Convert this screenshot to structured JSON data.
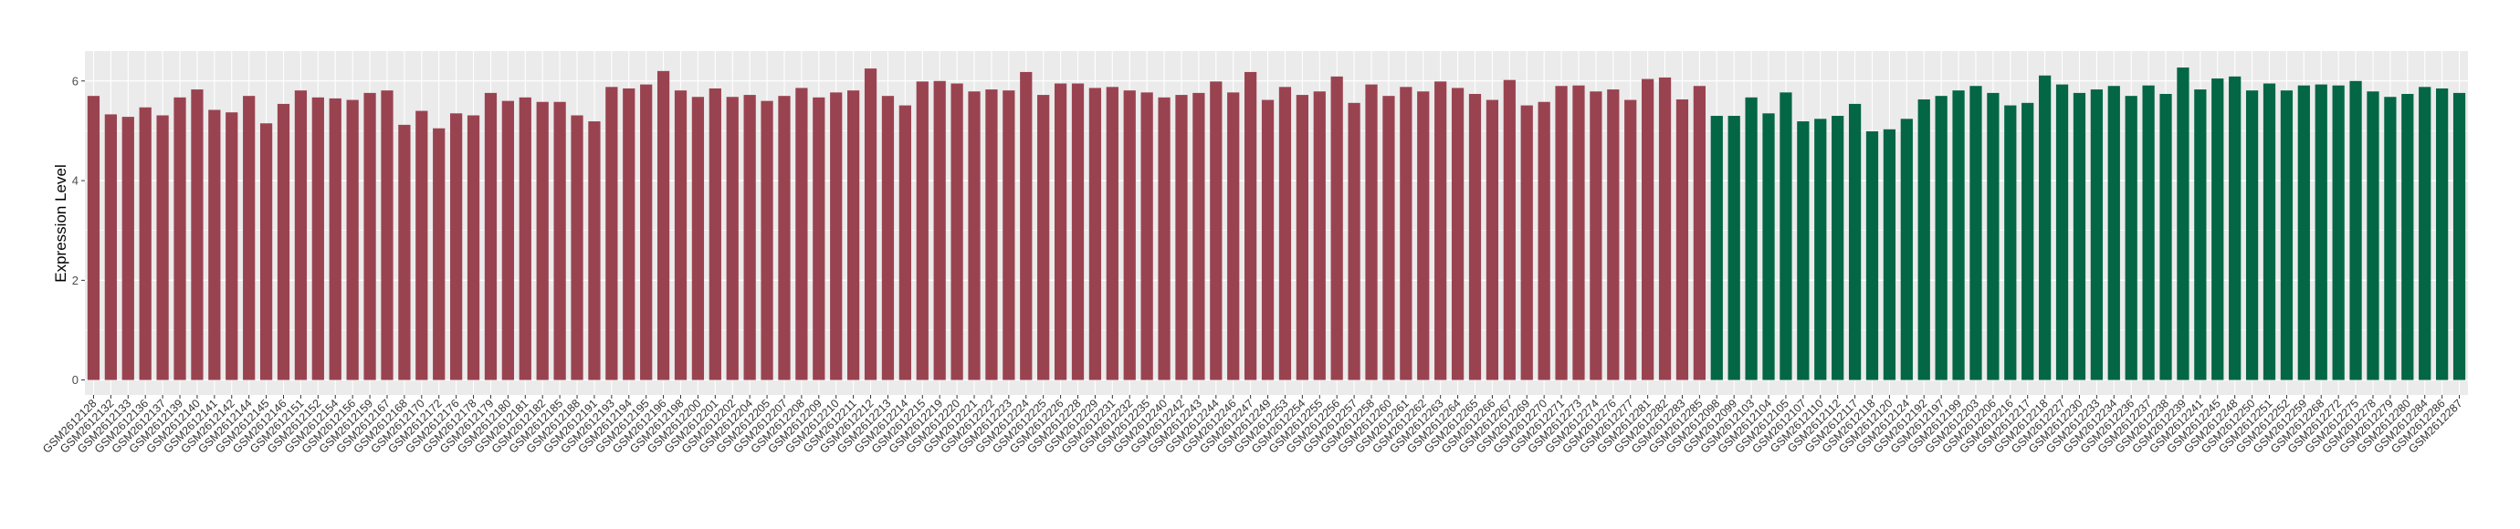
{
  "chart_data": {
    "type": "bar",
    "title": "",
    "xlabel": "",
    "ylabel": "Expression Level",
    "ylim": [
      -0.3,
      6.6
    ],
    "yticks": [
      0,
      2,
      4,
      6
    ],
    "grid": true,
    "legend": "none",
    "colors": {
      "group1": "#9A4350",
      "group2": "#036645",
      "panel": "#EBEBEB",
      "grid": "#FFFFFF"
    },
    "categories": [
      "GSM2612128",
      "GSM2612132",
      "GSM2612133",
      "GSM2612136",
      "GSM2612137",
      "GSM2612139",
      "GSM2612140",
      "GSM2612141",
      "GSM2612142",
      "GSM2612144",
      "GSM2612145",
      "GSM2612146",
      "GSM2612151",
      "GSM2612152",
      "GSM2612154",
      "GSM2612156",
      "GSM2612159",
      "GSM2612167",
      "GSM2612168",
      "GSM2612170",
      "GSM2612172",
      "GSM2612176",
      "GSM2612178",
      "GSM2612179",
      "GSM2612180",
      "GSM2612181",
      "GSM2612182",
      "GSM2612185",
      "GSM2612188",
      "GSM2612191",
      "GSM2612193",
      "GSM2612194",
      "GSM2612195",
      "GSM2612196",
      "GSM2612198",
      "GSM2612200",
      "GSM2612201",
      "GSM2612202",
      "GSM2612204",
      "GSM2612205",
      "GSM2612207",
      "GSM2612208",
      "GSM2612209",
      "GSM2612210",
      "GSM2612211",
      "GSM2612212",
      "GSM2612213",
      "GSM2612214",
      "GSM2612215",
      "GSM2612219",
      "GSM2612220",
      "GSM2612221",
      "GSM2612222",
      "GSM2612223",
      "GSM2612224",
      "GSM2612225",
      "GSM2612226",
      "GSM2612228",
      "GSM2612229",
      "GSM2612231",
      "GSM2612232",
      "GSM2612235",
      "GSM2612240",
      "GSM2612242",
      "GSM2612243",
      "GSM2612244",
      "GSM2612246",
      "GSM2612247",
      "GSM2612249",
      "GSM2612253",
      "GSM2612254",
      "GSM2612255",
      "GSM2612256",
      "GSM2612257",
      "GSM2612258",
      "GSM2612260",
      "GSM2612261",
      "GSM2612262",
      "GSM2612263",
      "GSM2612264",
      "GSM2612265",
      "GSM2612266",
      "GSM2612267",
      "GSM2612269",
      "GSM2612270",
      "GSM2612271",
      "GSM2612273",
      "GSM2612274",
      "GSM2612276",
      "GSM2612277",
      "GSM2612281",
      "GSM2612282",
      "GSM2612283",
      "GSM2612285",
      "GSM2612098",
      "GSM2612099",
      "GSM2612103",
      "GSM2612104",
      "GSM2612105",
      "GSM2612107",
      "GSM2612110",
      "GSM2612112",
      "GSM2612117",
      "GSM2612118",
      "GSM2612120",
      "GSM2612124",
      "GSM2612192",
      "GSM2612197",
      "GSM2612199",
      "GSM2612203",
      "GSM2612206",
      "GSM2612216",
      "GSM2612217",
      "GSM2612218",
      "GSM2612227",
      "GSM2612230",
      "GSM2612233",
      "GSM2612234",
      "GSM2612236",
      "GSM2612237",
      "GSM2612238",
      "GSM2612239",
      "GSM2612241",
      "GSM2612245",
      "GSM2612248",
      "GSM2612250",
      "GSM2612251",
      "GSM2612252",
      "GSM2612259",
      "GSM2612268",
      "GSM2612272",
      "GSM2612275",
      "GSM2612278",
      "GSM2612279",
      "GSM2612280",
      "GSM2612284",
      "GSM2612286",
      "GSM2612287"
    ],
    "values": [
      5.7,
      5.33,
      5.28,
      5.47,
      5.31,
      5.67,
      5.83,
      5.42,
      5.37,
      5.7,
      5.15,
      5.54,
      5.81,
      5.67,
      5.65,
      5.62,
      5.76,
      5.81,
      5.12,
      5.4,
      5.05,
      5.35,
      5.31,
      5.76,
      5.6,
      5.67,
      5.58,
      5.58,
      5.31,
      5.19,
      5.88,
      5.85,
      5.93,
      6.2,
      5.81,
      5.68,
      5.85,
      5.68,
      5.72,
      5.6,
      5.7,
      5.86,
      5.67,
      5.77,
      5.81,
      6.25,
      5.7,
      5.51,
      5.99,
      6.0,
      5.95,
      5.79,
      5.83,
      5.81,
      6.18,
      5.72,
      5.95,
      5.95,
      5.86,
      5.88,
      5.81,
      5.77,
      5.67,
      5.72,
      5.76,
      5.99,
      5.77,
      6.18,
      5.62,
      5.88,
      5.72,
      5.79,
      6.09,
      5.56,
      5.93,
      5.7,
      5.88,
      5.79,
      5.99,
      5.86,
      5.74,
      5.62,
      6.02,
      5.51,
      5.58,
      5.9,
      5.91,
      5.79,
      5.83,
      5.62,
      6.04,
      6.07,
      5.63,
      5.9,
      5.3,
      5.3,
      5.67,
      5.35,
      5.77,
      5.19,
      5.24,
      5.3,
      5.54,
      4.99,
      5.03,
      5.24,
      5.63,
      5.7,
      5.81,
      5.9,
      5.76,
      5.51,
      5.56,
      6.11,
      5.93,
      5.76,
      5.83,
      5.9,
      5.7,
      5.91,
      5.74,
      6.27,
      5.83,
      6.05,
      6.09,
      5.81,
      5.95,
      5.81,
      5.91,
      5.93,
      5.91,
      6.0,
      5.79,
      5.68,
      5.74,
      5.88,
      5.85,
      5.76
    ],
    "groups": [
      1,
      1,
      1,
      1,
      1,
      1,
      1,
      1,
      1,
      1,
      1,
      1,
      1,
      1,
      1,
      1,
      1,
      1,
      1,
      1,
      1,
      1,
      1,
      1,
      1,
      1,
      1,
      1,
      1,
      1,
      1,
      1,
      1,
      1,
      1,
      1,
      1,
      1,
      1,
      1,
      1,
      1,
      1,
      1,
      1,
      1,
      1,
      1,
      1,
      1,
      1,
      1,
      1,
      1,
      1,
      1,
      1,
      1,
      1,
      1,
      1,
      1,
      1,
      1,
      1,
      1,
      1,
      1,
      1,
      1,
      1,
      1,
      1,
      1,
      1,
      1,
      1,
      1,
      1,
      1,
      1,
      1,
      1,
      1,
      1,
      1,
      1,
      1,
      1,
      1,
      1,
      1,
      1,
      1,
      2,
      2,
      2,
      2,
      2,
      2,
      2,
      2,
      2,
      2,
      2,
      2,
      2,
      2,
      2,
      2,
      2,
      2,
      2,
      2,
      2,
      2,
      2,
      2,
      2,
      2,
      2,
      2,
      2,
      2,
      2,
      2,
      2,
      2,
      2,
      2,
      2,
      2,
      2,
      2,
      2,
      2,
      2,
      2
    ]
  }
}
